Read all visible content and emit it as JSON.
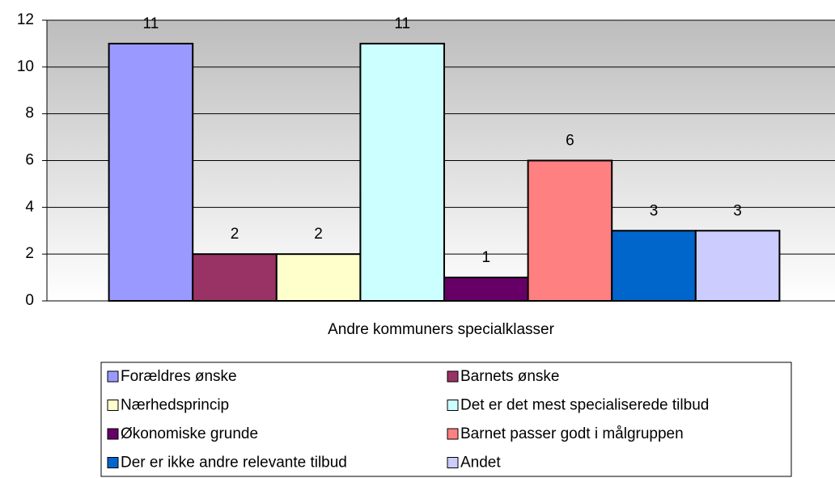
{
  "chart_data": {
    "type": "bar",
    "categories": [
      "Andre kommuners specialklasser"
    ],
    "series": [
      {
        "name": "Forældres ønske",
        "color": "#9999ff",
        "values": [
          11
        ]
      },
      {
        "name": "Barnets ønske",
        "color": "#993366",
        "values": [
          2
        ]
      },
      {
        "name": "Nærhedsprincip",
        "color": "#ffffcc",
        "values": [
          2
        ]
      },
      {
        "name": "Det er det mest specialiserede tilbud",
        "color": "#ccffff",
        "values": [
          11
        ]
      },
      {
        "name": "Økonomiske grunde",
        "color": "#660066",
        "values": [
          1
        ]
      },
      {
        "name": "Barnet passer godt i målgruppen",
        "color": "#ff8080",
        "values": [
          6
        ]
      },
      {
        "name": "Der er ikke andre relevante tilbud",
        "color": "#0066cc",
        "values": [
          3
        ]
      },
      {
        "name": "Andet",
        "color": "#ccccff",
        "values": [
          3
        ]
      }
    ],
    "ylim": [
      0,
      12
    ],
    "yticks": [
      0,
      2,
      4,
      6,
      8,
      10,
      12
    ],
    "grid": true,
    "legend": "bottom"
  }
}
